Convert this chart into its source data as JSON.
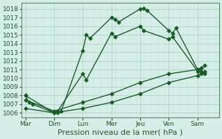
{
  "xlabel": "Pression niveau de la mer( hPa )",
  "background_color": "#d5eee8",
  "grid_color": "#b0cfc8",
  "line_color": "#1a5c28",
  "text_color": "#2a5030",
  "spine_color": "#5a8868",
  "ylim": [
    1005.5,
    1018.7
  ],
  "yticks": [
    1006,
    1007,
    1008,
    1009,
    1010,
    1011,
    1012,
    1013,
    1014,
    1015,
    1016,
    1017,
    1018
  ],
  "x_labels": [
    "Mar",
    "Dim",
    "Lun",
    "Mer",
    "Jeu",
    "Ven",
    "Sam"
  ],
  "x_day_positions": [
    0,
    8,
    16,
    24,
    32,
    40,
    48
  ],
  "xlim": [
    -1,
    54
  ],
  "series1": {
    "x": [
      0,
      1,
      2,
      8,
      9,
      10,
      16,
      17,
      18,
      24,
      25,
      26,
      32,
      33,
      34,
      40,
      41,
      42,
      48,
      49,
      50
    ],
    "y": [
      1008.0,
      1007.2,
      1007.0,
      1006.0,
      1006.0,
      1006.2,
      1013.2,
      1015.0,
      1014.6,
      1017.0,
      1016.8,
      1016.5,
      1018.0,
      1018.1,
      1017.8,
      1015.5,
      1015.2,
      1015.8,
      1011.0,
      1010.8,
      1010.5
    ]
  },
  "series2": {
    "x": [
      0,
      8,
      9,
      16,
      17,
      24,
      25,
      32,
      33,
      40,
      41,
      48,
      49
    ],
    "y": [
      1008.0,
      1006.0,
      1006.2,
      1010.5,
      1009.8,
      1015.2,
      1014.8,
      1016.0,
      1015.5,
      1014.5,
      1014.8,
      1010.8,
      1011.2
    ]
  },
  "series3": {
    "x": [
      0,
      8,
      16,
      24,
      32,
      40,
      48,
      49,
      50
    ],
    "y": [
      1007.5,
      1006.2,
      1007.2,
      1008.2,
      1009.5,
      1010.5,
      1011.0,
      1011.2,
      1011.5
    ]
  },
  "series4": {
    "x": [
      0,
      8,
      16,
      24,
      32,
      40,
      48,
      49,
      50
    ],
    "y": [
      1006.5,
      1006.0,
      1006.5,
      1007.2,
      1008.2,
      1009.5,
      1010.3,
      1010.5,
      1010.8
    ]
  },
  "marker": "D",
  "marker_size": 2.5,
  "line_width": 1.0,
  "tick_label_fontsize": 6.5,
  "xlabel_fontsize": 8.0
}
